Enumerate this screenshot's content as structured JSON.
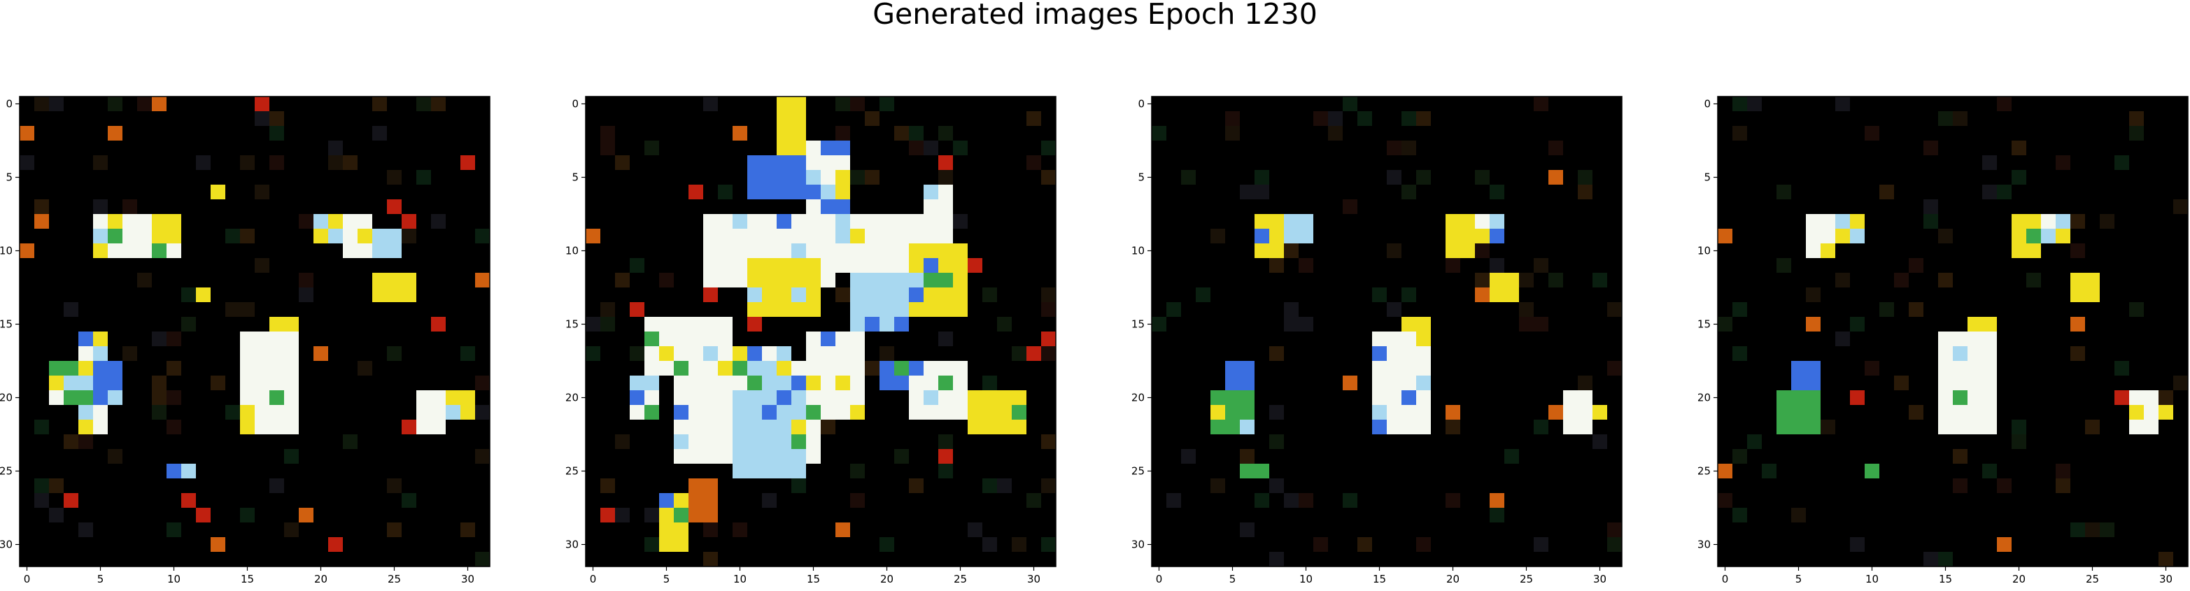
{
  "figure": {
    "title": "Generated images Epoch 1230"
  },
  "panels": [
    {
      "variant": "A",
      "x_ticks": [
        "0",
        "5",
        "10",
        "15",
        "20",
        "25",
        "30"
      ],
      "y_ticks": [
        "0",
        "5",
        "10",
        "15",
        "20",
        "25",
        "30"
      ]
    },
    {
      "variant": "B",
      "x_ticks": [
        "0",
        "5",
        "10",
        "15",
        "20",
        "25",
        "30"
      ],
      "y_ticks": [
        "0",
        "5",
        "10",
        "15",
        "20",
        "25",
        "30"
      ]
    },
    {
      "variant": "C",
      "x_ticks": [
        "0",
        "5",
        "10",
        "15",
        "20",
        "25",
        "30"
      ],
      "y_ticks": [
        "0",
        "5",
        "10",
        "15",
        "20",
        "25",
        "30"
      ]
    },
    {
      "variant": "D",
      "x_ticks": [
        "0",
        "5",
        "10",
        "15",
        "20",
        "25",
        "30"
      ],
      "y_ticks": [
        "0",
        "5",
        "10",
        "15",
        "20",
        "25",
        "30"
      ]
    }
  ],
  "palette": {
    "background": "#000000",
    "white": "#f5f8f0",
    "yellow": "#f0e020",
    "blue": "#3a6ee0",
    "light_blue": "#a8d8f0",
    "green": "#3aa84a",
    "orange": "#d06010",
    "red": "#c02010"
  }
}
